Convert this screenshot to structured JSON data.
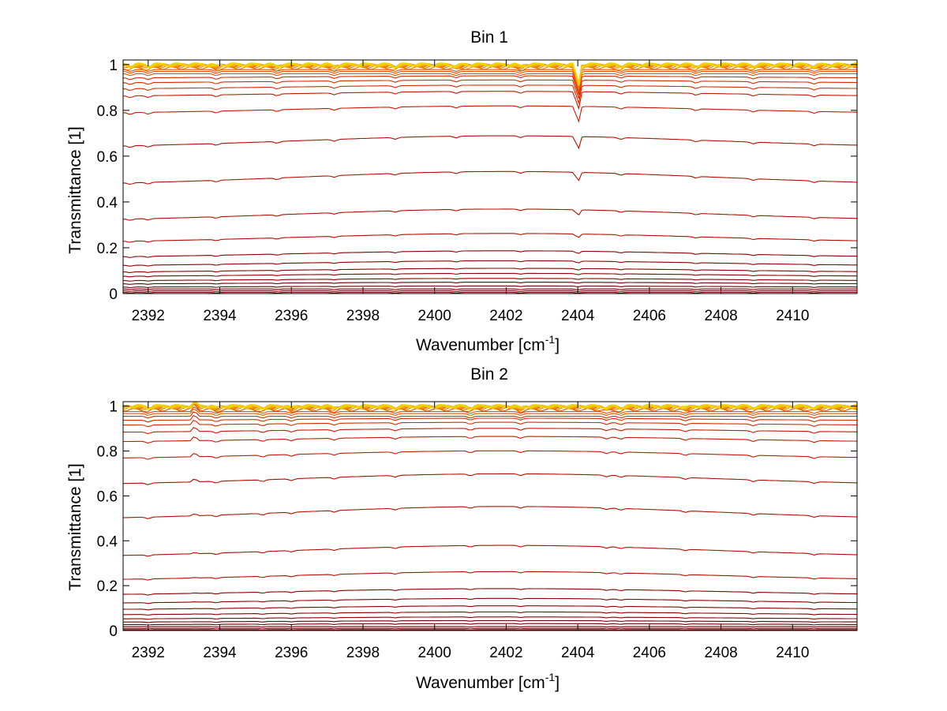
{
  "chart_data": [
    {
      "type": "line",
      "title": "Bin 1",
      "xlabel": "Wavenumber [cm",
      "xlabel_sup": "-1",
      "xlabel_end": "]",
      "ylabel": "Transmittance [1]",
      "xlim": [
        2391.3,
        2411.8
      ],
      "ylim": [
        0,
        1.02
      ],
      "xticks": [
        2392,
        2394,
        2396,
        2398,
        2400,
        2402,
        2404,
        2406,
        2408,
        2410
      ],
      "yticks": [
        0,
        0.2,
        0.4,
        0.6,
        0.8,
        1
      ],
      "ytick_labels": [
        "0",
        "0.2",
        "0.4",
        "0.6",
        "0.8",
        "1"
      ],
      "grid": true,
      "grid_style": "dotted",
      "series_levels": [
        0.0,
        0.005,
        0.012,
        0.02,
        0.03,
        0.045,
        0.06,
        0.08,
        0.1,
        0.13,
        0.17,
        0.24,
        0.34,
        0.5,
        0.66,
        0.8,
        0.87,
        0.9,
        0.925,
        0.945,
        0.96,
        0.97,
        0.978,
        0.985,
        0.99,
        0.994,
        0.997,
        0.999,
        1.0
      ],
      "absorption_lines": [
        2391.5,
        2392.0,
        2393.9,
        2395.6,
        2397.2,
        2398.9,
        2400.6,
        2402.4,
        2404.0,
        2405.2,
        2407.3,
        2408.9,
        2410.6
      ],
      "strong_line": 2404.0
    },
    {
      "type": "line",
      "title": "Bin 2",
      "xlabel": "Wavenumber [cm",
      "xlabel_sup": "-1",
      "xlabel_end": "]",
      "ylabel": "Transmittance [1]",
      "xlim": [
        2391.3,
        2411.8
      ],
      "ylim": [
        0,
        1.02
      ],
      "xticks": [
        2392,
        2394,
        2396,
        2398,
        2400,
        2402,
        2404,
        2406,
        2408,
        2410
      ],
      "yticks": [
        0,
        0.2,
        0.4,
        0.6,
        0.8,
        1
      ],
      "ytick_labels": [
        "0",
        "0.2",
        "0.4",
        "0.6",
        "0.8",
        "1"
      ],
      "grid": true,
      "grid_style": "dotted",
      "series_levels": [
        0.0,
        0.004,
        0.01,
        0.018,
        0.028,
        0.04,
        0.055,
        0.075,
        0.1,
        0.13,
        0.17,
        0.24,
        0.35,
        0.52,
        0.67,
        0.78,
        0.85,
        0.89,
        0.92,
        0.94,
        0.955,
        0.967,
        0.976,
        0.984,
        0.99,
        0.994,
        0.997,
        0.999,
        1.0
      ],
      "absorption_lines": [
        2392.0,
        2393.9,
        2395.2,
        2396.0,
        2397.2,
        2398.9,
        2401.0,
        2402.4,
        2404.8,
        2405.2,
        2407.0,
        2408.9,
        2410.6
      ],
      "strong_line": 2393.3
    }
  ]
}
